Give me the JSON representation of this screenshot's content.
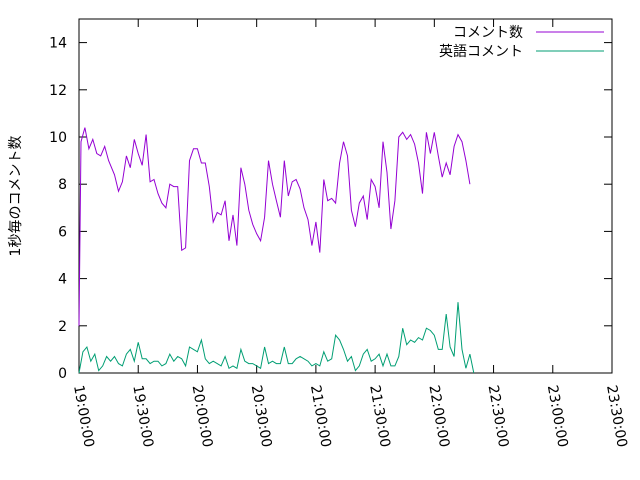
{
  "chart_data": {
    "type": "line",
    "ylabel": "1秒毎のコメント数",
    "xlabel": "",
    "title": "",
    "ylim": [
      0,
      15
    ],
    "yticks": [
      0,
      2,
      4,
      6,
      8,
      10,
      12,
      14
    ],
    "y_tick_labels": [
      "0",
      "2",
      "4",
      "6",
      "8",
      "10",
      "12",
      "14"
    ],
    "xlim": [
      "19:00:00",
      "23:30:00"
    ],
    "x_tick_labels": [
      "19:00:00",
      "19:30:00",
      "20:00:00",
      "20:30:00",
      "21:00:00",
      "21:30:00",
      "22:00:00",
      "22:30:00",
      "23:00:00",
      "23:30:00"
    ],
    "grid": false,
    "legend_position": "top-right",
    "series": [
      {
        "name": "コメント数",
        "color": "#9400d3",
        "points": [
          [
            "19:00:00",
            2.0
          ],
          [
            "19:01:00",
            9.8
          ],
          [
            "19:03:00",
            10.4
          ],
          [
            "19:05:00",
            9.5
          ],
          [
            "19:07:00",
            9.9
          ],
          [
            "19:09:00",
            9.3
          ],
          [
            "19:11:00",
            9.2
          ],
          [
            "19:13:00",
            9.6
          ],
          [
            "19:15:00",
            9.0
          ],
          [
            "19:18:00",
            8.4
          ],
          [
            "19:20:00",
            7.7
          ],
          [
            "19:22:00",
            8.1
          ],
          [
            "19:24:00",
            9.2
          ],
          [
            "19:26:00",
            8.7
          ],
          [
            "19:28:00",
            9.9
          ],
          [
            "19:30:00",
            9.3
          ],
          [
            "19:32:00",
            8.8
          ],
          [
            "19:34:00",
            10.1
          ],
          [
            "19:36:00",
            8.1
          ],
          [
            "19:38:00",
            8.2
          ],
          [
            "19:40:00",
            7.6
          ],
          [
            "19:42:00",
            7.2
          ],
          [
            "19:44:00",
            7.0
          ],
          [
            "19:46:00",
            8.0
          ],
          [
            "19:48:00",
            7.9
          ],
          [
            "19:50:00",
            7.9
          ],
          [
            "19:52:00",
            5.2
          ],
          [
            "19:54:00",
            5.3
          ],
          [
            "19:56:00",
            9.0
          ],
          [
            "19:58:00",
            9.5
          ],
          [
            "20:00:00",
            9.5
          ],
          [
            "20:02:00",
            8.9
          ],
          [
            "20:04:00",
            8.9
          ],
          [
            "20:06:00",
            7.9
          ],
          [
            "20:08:00",
            6.4
          ],
          [
            "20:10:00",
            6.8
          ],
          [
            "20:12:00",
            6.7
          ],
          [
            "20:14:00",
            7.3
          ],
          [
            "20:16:00",
            5.6
          ],
          [
            "20:18:00",
            6.7
          ],
          [
            "20:20:00",
            5.4
          ],
          [
            "20:22:00",
            8.7
          ],
          [
            "20:24:00",
            8.0
          ],
          [
            "20:26:00",
            6.9
          ],
          [
            "20:28:00",
            6.3
          ],
          [
            "20:30:00",
            5.9
          ],
          [
            "20:32:00",
            5.6
          ],
          [
            "20:34:00",
            6.6
          ],
          [
            "20:36:00",
            9.0
          ],
          [
            "20:38:00",
            8.0
          ],
          [
            "20:40:00",
            7.3
          ],
          [
            "20:42:00",
            6.6
          ],
          [
            "20:44:00",
            9.0
          ],
          [
            "20:46:00",
            7.5
          ],
          [
            "20:48:00",
            8.1
          ],
          [
            "20:50:00",
            8.2
          ],
          [
            "20:52:00",
            7.8
          ],
          [
            "20:54:00",
            7.0
          ],
          [
            "20:56:00",
            6.5
          ],
          [
            "20:58:00",
            5.4
          ],
          [
            "21:00:00",
            6.4
          ],
          [
            "21:02:00",
            5.1
          ],
          [
            "21:04:00",
            8.2
          ],
          [
            "21:06:00",
            7.3
          ],
          [
            "21:08:00",
            7.4
          ],
          [
            "21:10:00",
            7.2
          ],
          [
            "21:12:00",
            8.9
          ],
          [
            "21:14:00",
            9.8
          ],
          [
            "21:16:00",
            9.2
          ],
          [
            "21:18:00",
            6.9
          ],
          [
            "21:20:00",
            6.2
          ],
          [
            "21:22:00",
            7.2
          ],
          [
            "21:24:00",
            7.5
          ],
          [
            "21:26:00",
            6.5
          ],
          [
            "21:28:00",
            8.2
          ],
          [
            "21:30:00",
            7.9
          ],
          [
            "21:32:00",
            7.0
          ],
          [
            "21:34:00",
            9.8
          ],
          [
            "21:36:00",
            8.5
          ],
          [
            "21:38:00",
            6.1
          ],
          [
            "21:40:00",
            7.3
          ],
          [
            "21:42:00",
            10.0
          ],
          [
            "21:44:00",
            10.2
          ],
          [
            "21:46:00",
            9.9
          ],
          [
            "21:48:00",
            10.1
          ],
          [
            "21:50:00",
            9.7
          ],
          [
            "21:52:00",
            8.9
          ],
          [
            "21:54:00",
            7.6
          ],
          [
            "21:56:00",
            10.2
          ],
          [
            "21:58:00",
            9.3
          ],
          [
            "22:00:00",
            10.2
          ],
          [
            "22:02:00",
            9.2
          ],
          [
            "22:04:00",
            8.3
          ],
          [
            "22:06:00",
            8.9
          ],
          [
            "22:08:00",
            8.4
          ],
          [
            "22:10:00",
            9.6
          ],
          [
            "22:12:00",
            10.1
          ],
          [
            "22:14:00",
            9.8
          ],
          [
            "22:16:00",
            9.0
          ],
          [
            "22:18:00",
            8.0
          ]
        ]
      },
      {
        "name": "英語コメント",
        "color": "#009e73",
        "points": [
          [
            "19:00:00",
            0.0
          ],
          [
            "19:02:00",
            0.9
          ],
          [
            "19:04:00",
            1.1
          ],
          [
            "19:06:00",
            0.5
          ],
          [
            "19:08:00",
            0.8
          ],
          [
            "19:10:00",
            0.1
          ],
          [
            "19:12:00",
            0.3
          ],
          [
            "19:14:00",
            0.7
          ],
          [
            "19:16:00",
            0.5
          ],
          [
            "19:18:00",
            0.7
          ],
          [
            "19:20:00",
            0.4
          ],
          [
            "19:22:00",
            0.3
          ],
          [
            "19:24:00",
            0.8
          ],
          [
            "19:26:00",
            1.0
          ],
          [
            "19:28:00",
            0.5
          ],
          [
            "19:30:00",
            1.3
          ],
          [
            "19:32:00",
            0.6
          ],
          [
            "19:34:00",
            0.6
          ],
          [
            "19:36:00",
            0.4
          ],
          [
            "19:38:00",
            0.5
          ],
          [
            "19:40:00",
            0.5
          ],
          [
            "19:42:00",
            0.3
          ],
          [
            "19:44:00",
            0.4
          ],
          [
            "19:46:00",
            0.8
          ],
          [
            "19:48:00",
            0.5
          ],
          [
            "19:50:00",
            0.7
          ],
          [
            "19:52:00",
            0.6
          ],
          [
            "19:54:00",
            0.3
          ],
          [
            "19:56:00",
            1.1
          ],
          [
            "19:58:00",
            1.0
          ],
          [
            "20:00:00",
            0.9
          ],
          [
            "20:02:00",
            1.4
          ],
          [
            "20:04:00",
            0.6
          ],
          [
            "20:06:00",
            0.4
          ],
          [
            "20:08:00",
            0.5
          ],
          [
            "20:10:00",
            0.4
          ],
          [
            "20:12:00",
            0.3
          ],
          [
            "20:14:00",
            0.7
          ],
          [
            "20:16:00",
            0.2
          ],
          [
            "20:18:00",
            0.3
          ],
          [
            "20:20:00",
            0.2
          ],
          [
            "20:22:00",
            1.0
          ],
          [
            "20:24:00",
            0.5
          ],
          [
            "20:26:00",
            0.4
          ],
          [
            "20:28:00",
            0.4
          ],
          [
            "20:30:00",
            0.3
          ],
          [
            "20:32:00",
            0.2
          ],
          [
            "20:34:00",
            1.1
          ],
          [
            "20:36:00",
            0.4
          ],
          [
            "20:38:00",
            0.5
          ],
          [
            "20:40:00",
            0.4
          ],
          [
            "20:42:00",
            0.4
          ],
          [
            "20:44:00",
            1.1
          ],
          [
            "20:46:00",
            0.4
          ],
          [
            "20:48:00",
            0.4
          ],
          [
            "20:50:00",
            0.6
          ],
          [
            "20:52:00",
            0.7
          ],
          [
            "20:54:00",
            0.6
          ],
          [
            "20:56:00",
            0.5
          ],
          [
            "20:58:00",
            0.3
          ],
          [
            "21:00:00",
            0.4
          ],
          [
            "21:02:00",
            0.3
          ],
          [
            "21:04:00",
            0.9
          ],
          [
            "21:06:00",
            0.5
          ],
          [
            "21:08:00",
            0.6
          ],
          [
            "21:10:00",
            1.6
          ],
          [
            "21:12:00",
            1.4
          ],
          [
            "21:14:00",
            1.0
          ],
          [
            "21:16:00",
            0.5
          ],
          [
            "21:18:00",
            0.7
          ],
          [
            "21:20:00",
            0.1
          ],
          [
            "21:22:00",
            0.3
          ],
          [
            "21:24:00",
            0.8
          ],
          [
            "21:26:00",
            1.0
          ],
          [
            "21:28:00",
            0.5
          ],
          [
            "21:30:00",
            0.6
          ],
          [
            "21:32:00",
            0.8
          ],
          [
            "21:34:00",
            0.3
          ],
          [
            "21:36:00",
            0.8
          ],
          [
            "21:38:00",
            0.3
          ],
          [
            "21:40:00",
            0.3
          ],
          [
            "21:42:00",
            0.7
          ],
          [
            "21:44:00",
            1.9
          ],
          [
            "21:46:00",
            1.2
          ],
          [
            "21:48:00",
            1.4
          ],
          [
            "21:50:00",
            1.3
          ],
          [
            "21:52:00",
            1.5
          ],
          [
            "21:54:00",
            1.4
          ],
          [
            "21:56:00",
            1.9
          ],
          [
            "21:58:00",
            1.8
          ],
          [
            "22:00:00",
            1.6
          ],
          [
            "22:02:00",
            1.0
          ],
          [
            "22:04:00",
            1.0
          ],
          [
            "22:06:00",
            2.5
          ],
          [
            "22:08:00",
            1.1
          ],
          [
            "22:10:00",
            0.7
          ],
          [
            "22:12:00",
            3.0
          ],
          [
            "22:14:00",
            1.0
          ],
          [
            "22:16:00",
            0.2
          ],
          [
            "22:18:00",
            0.8
          ],
          [
            "22:20:00",
            0.0
          ]
        ]
      }
    ]
  }
}
